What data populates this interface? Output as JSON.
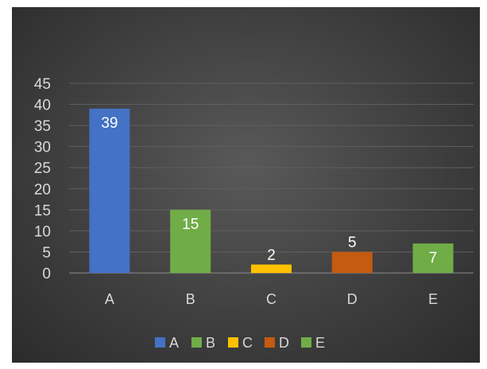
{
  "chart_data": {
    "type": "bar",
    "title": "",
    "xlabel": "",
    "ylabel": "",
    "categories": [
      "A",
      "B",
      "C",
      "D",
      "E"
    ],
    "values": [
      39,
      15,
      2,
      5,
      7
    ],
    "data_labels": [
      "39",
      "15",
      "2",
      "5",
      "7"
    ],
    "colors": [
      "#4472c4",
      "#70ad47",
      "#ffc000",
      "#c55a11",
      "#70ad47"
    ],
    "ylim": [
      0,
      45
    ],
    "yticks": [
      0,
      5,
      10,
      15,
      20,
      25,
      30,
      35,
      40,
      45
    ],
    "grid": true,
    "legend": {
      "placement": "bottom",
      "entries": [
        "A",
        "B",
        "C",
        "D",
        "E"
      ]
    }
  }
}
